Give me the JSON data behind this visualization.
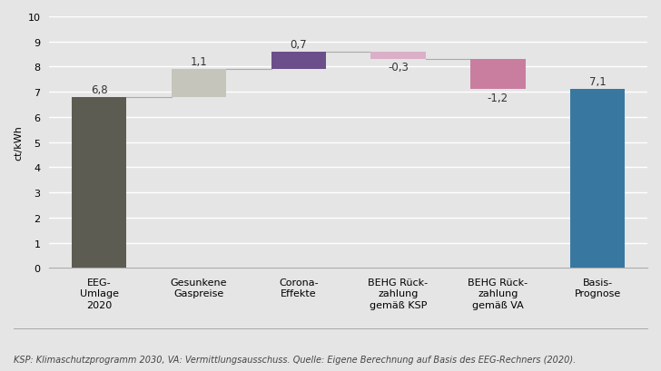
{
  "categories": [
    "EEG-\nUmlage\n2020",
    "Gesunkene\nGaspreise",
    "Corona-\nEffekte",
    "BEHG Rück-\nzahlung\ngemäß KSP",
    "BEHG Rück-\nzahlung\ngemäß VA",
    "Basis-\nPrognose"
  ],
  "bar_bottoms": [
    0,
    6.8,
    7.9,
    8.3,
    7.1,
    0
  ],
  "bar_heights": [
    6.8,
    1.1,
    0.7,
    0.3,
    1.2,
    7.1
  ],
  "bar_directions": [
    1,
    1,
    1,
    -1,
    -1,
    1
  ],
  "bar_colors": [
    "#5c5c52",
    "#c5c5bc",
    "#6b4e8a",
    "#dbafc8",
    "#c97ea0",
    "#3878a0"
  ],
  "value_labels": [
    "6,8",
    "1,1",
    "0,7",
    "-0,3",
    "-1,2",
    "7,1"
  ],
  "connector_lines": [
    [
      0,
      6.8,
      1,
      6.8
    ],
    [
      1,
      7.9,
      2,
      7.9
    ],
    [
      2,
      8.6,
      3,
      8.6
    ],
    [
      3,
      8.3,
      4,
      8.3
    ]
  ],
  "ylabel": "ct/kWh",
  "ylim": [
    0,
    10
  ],
  "yticks": [
    0,
    1,
    2,
    3,
    4,
    5,
    6,
    7,
    8,
    9,
    10
  ],
  "background_color": "#e5e5e5",
  "plot_background_color": "#e5e5e5",
  "footnote": "KSP: Klimaschutzprogramm 2030, VA: Vermittlungsausschuss. Quelle: Eigene Berechnung auf Basis des EEG-Rechners (2020).",
  "label_fontsize": 8,
  "value_fontsize": 8.5,
  "footnote_fontsize": 7,
  "bar_width": 0.55
}
